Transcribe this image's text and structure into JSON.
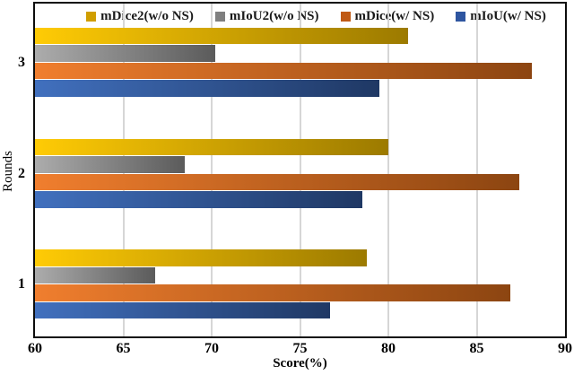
{
  "chart_data": {
    "type": "bar",
    "orientation": "horizontal",
    "title": "",
    "categories": [
      "3",
      "2",
      "1"
    ],
    "series": [
      {
        "name": "mDice2(w/o NS)",
        "values": [
          81.1,
          80.0,
          78.8
        ],
        "color_start": "#FFCB05",
        "color_end": "#9C7A00",
        "legend_color": "#D09E00"
      },
      {
        "name": "mIoU2(w/o NS)",
        "values": [
          70.2,
          68.5,
          66.8
        ],
        "color_start": "#ACACAC",
        "color_end": "#5B5B5B",
        "legend_color": "#7F7F7F"
      },
      {
        "name": "mDice(w/ NS)",
        "values": [
          88.1,
          87.4,
          86.9
        ],
        "color_start": "#F07E2E",
        "color_end": "#8C4511",
        "legend_color": "#C05A15"
      },
      {
        "name": "mIoU(w/ NS)",
        "values": [
          79.5,
          78.5,
          76.7
        ],
        "color_start": "#4170BE",
        "color_end": "#1F3864",
        "legend_color": "#2E55A0"
      }
    ],
    "xlabel": "Score(%)",
    "ylabel": "Rounds",
    "xlim": [
      60,
      90
    ],
    "xticks": [
      60,
      65,
      70,
      75,
      80,
      85,
      90
    ],
    "grid": "vertical-only",
    "gridline_color": "#d6d6d6",
    "axis_color": "#0d0d0d",
    "legend_position": "top-inside"
  }
}
